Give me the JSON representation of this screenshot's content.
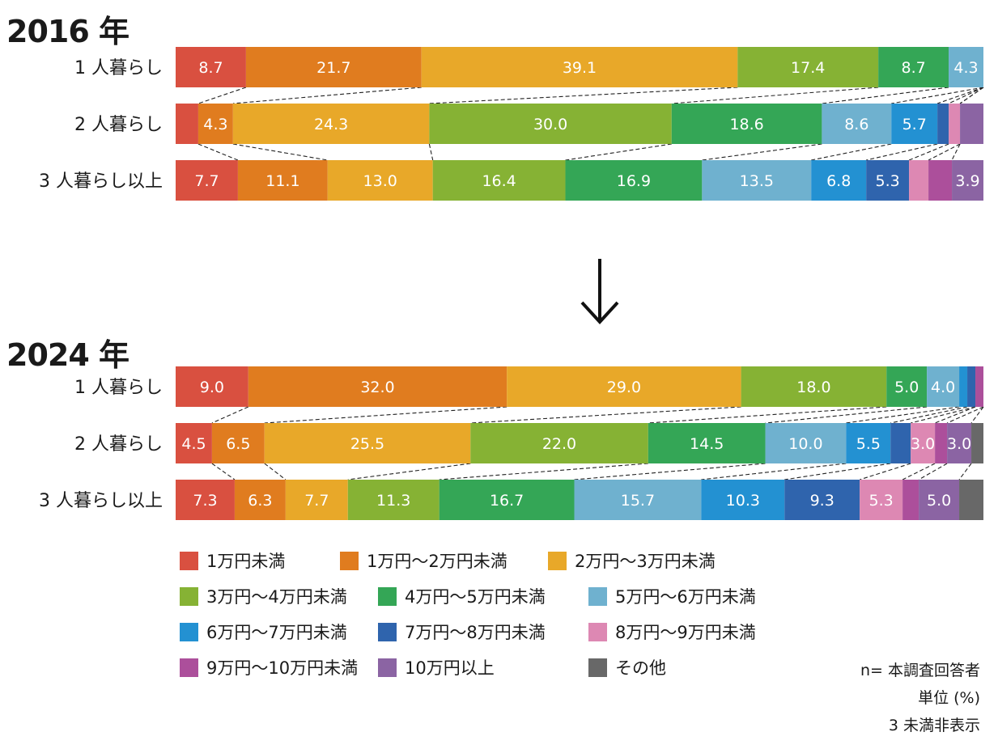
{
  "unit": "単位 (%)",
  "sample_note": "n= 本調査回答者",
  "hidden_note": "3 未満非表示",
  "colors": [
    "#d95040",
    "#e07c1f",
    "#e8a829",
    "#86b234",
    "#34a656",
    "#6fb1cf",
    "#2391d2",
    "#2f64ad",
    "#dd88b3",
    "#ac4f9b",
    "#8b64a3",
    "#686868"
  ],
  "chart_data": [
    {
      "type": "bar",
      "orientation": "horizontal-stacked-100",
      "title": "2016 年",
      "categories": [
        "1 人暮らし",
        "2 人暮らし",
        "3 人暮らし以上"
      ],
      "series": [
        {
          "name": "1万円未満",
          "values": [
            8.7,
            2.8,
            7.7
          ]
        },
        {
          "name": "1万円〜2万円未満",
          "values": [
            21.7,
            4.3,
            11.1
          ]
        },
        {
          "name": "2万円〜3万円未満",
          "values": [
            39.1,
            24.3,
            13.0
          ]
        },
        {
          "name": "3万円〜4万円未満",
          "values": [
            17.4,
            30.0,
            16.4
          ]
        },
        {
          "name": "4万円〜5万円未満",
          "values": [
            8.7,
            18.6,
            16.9
          ]
        },
        {
          "name": "5万円〜6万円未満",
          "values": [
            4.3,
            8.6,
            13.5
          ]
        },
        {
          "name": "6万円〜7万円未満",
          "values": [
            0,
            5.7,
            6.8
          ]
        },
        {
          "name": "7万円〜8万円未満",
          "values": [
            0,
            1.4,
            5.3
          ]
        },
        {
          "name": "8万円〜9万円未満",
          "values": [
            0,
            1.4,
            2.4
          ]
        },
        {
          "name": "9万円〜10万円未満",
          "values": [
            0,
            0,
            2.9
          ]
        },
        {
          "name": "10万円以上",
          "values": [
            0,
            2.9,
            3.9
          ]
        },
        {
          "name": "その他",
          "values": [
            0,
            0,
            0
          ]
        }
      ],
      "labels": [
        [
          "8.7",
          "21.7",
          "39.1",
          "17.4",
          "8.7",
          "4.3",
          "",
          "",
          "",
          "",
          "",
          ""
        ],
        [
          "",
          "4.3",
          "24.3",
          "30.0",
          "18.6",
          "8.6",
          "5.7",
          "",
          "",
          "",
          "",
          ""
        ],
        [
          "7.7",
          "11.1",
          "13.0",
          "16.4",
          "16.9",
          "13.5",
          "6.8",
          "5.3",
          "",
          "",
          "3.9",
          ""
        ]
      ]
    },
    {
      "type": "bar",
      "orientation": "horizontal-stacked-100",
      "title": "2024 年",
      "categories": [
        "1 人暮らし",
        "2 人暮らし",
        "3 人暮らし以上"
      ],
      "series": [
        {
          "name": "1万円未満",
          "values": [
            9.0,
            4.5,
            7.3
          ]
        },
        {
          "name": "1万円〜2万円未満",
          "values": [
            32.0,
            6.5,
            6.3
          ]
        },
        {
          "name": "2万円〜3万円未満",
          "values": [
            29.0,
            25.5,
            7.7
          ]
        },
        {
          "name": "3万円〜4万円未満",
          "values": [
            18.0,
            22.0,
            11.3
          ]
        },
        {
          "name": "4万円〜5万円未満",
          "values": [
            5.0,
            14.5,
            16.7
          ]
        },
        {
          "name": "5万円〜6万円未満",
          "values": [
            4.0,
            10.0,
            15.7
          ]
        },
        {
          "name": "6万円〜7万円未満",
          "values": [
            1.0,
            5.5,
            10.3
          ]
        },
        {
          "name": "7万円〜8万円未満",
          "values": [
            1.0,
            2.5,
            9.3
          ]
        },
        {
          "name": "8万円〜9万円未満",
          "values": [
            0,
            3.0,
            5.3
          ]
        },
        {
          "name": "9万円〜10万円未満",
          "values": [
            1.0,
            1.5,
            2.0
          ]
        },
        {
          "name": "10万円以上",
          "values": [
            0,
            3.0,
            5.0
          ]
        },
        {
          "name": "その他",
          "values": [
            0,
            1.5,
            3.0
          ]
        }
      ],
      "labels": [
        [
          "9.0",
          "32.0",
          "29.0",
          "18.0",
          "5.0",
          "4.0",
          "",
          "",
          "",
          "",
          "",
          ""
        ],
        [
          "4.5",
          "6.5",
          "25.5",
          "22.0",
          "14.5",
          "10.0",
          "5.5",
          "",
          "3.0",
          "",
          "3.0",
          ""
        ],
        [
          "7.3",
          "6.3",
          "7.7",
          "11.3",
          "16.7",
          "15.7",
          "10.3",
          "9.3",
          "5.3",
          "",
          "5.0",
          ""
        ]
      ]
    }
  ]
}
